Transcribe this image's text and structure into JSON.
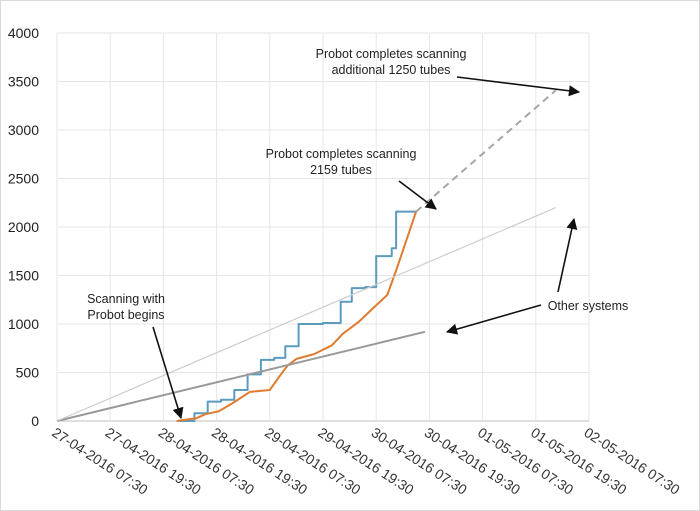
{
  "chart_data": {
    "type": "line",
    "title": "",
    "xlabel": "",
    "ylabel": "",
    "grid": true,
    "legend": "none",
    "ylim": [
      0,
      4000
    ],
    "yticks": [
      0,
      500,
      1000,
      1500,
      2000,
      2500,
      3000,
      3500,
      4000
    ],
    "xlim": [
      "27-04-2016 07:30",
      "02-05-2016 07:30"
    ],
    "xticks": [
      "27-04-2016 07:30",
      "27-04-2016 19:30",
      "28-04-2016 07:30",
      "28-04-2016 19:30",
      "29-04-2016 07:30",
      "29-04-2016 19:30",
      "30-04-2016 07:30",
      "30-04-2016 19:30",
      "01-05-2016 07:30",
      "01-05-2016 19:30",
      "02-05-2016 07:30"
    ],
    "series": [
      {
        "color": "#5b9bc0",
        "style": "step",
        "points": [
          [
            "28-04-2016 10:30",
            0
          ],
          [
            "28-04-2016 14:30",
            80
          ],
          [
            "28-04-2016 17:30",
            200
          ],
          [
            "28-04-2016 20:30",
            220
          ],
          [
            "28-04-2016 23:30",
            320
          ],
          [
            "29-04-2016 02:30",
            480
          ],
          [
            "29-04-2016 05:30",
            630
          ],
          [
            "29-04-2016 08:30",
            650
          ],
          [
            "29-04-2016 11:00",
            770
          ],
          [
            "29-04-2016 14:00",
            1000
          ],
          [
            "29-04-2016 19:30",
            1010
          ],
          [
            "29-04-2016 23:30",
            1230
          ],
          [
            "30-04-2016 02:00",
            1370
          ],
          [
            "30-04-2016 05:00",
            1380
          ],
          [
            "30-04-2016 07:30",
            1700
          ],
          [
            "30-04-2016 11:00",
            1780
          ],
          [
            "30-04-2016 12:00",
            2159
          ],
          [
            "30-04-2016 16:30",
            2159
          ]
        ]
      },
      {
        "color": "#e07b2f",
        "style": "line",
        "points": [
          [
            "28-04-2016 10:30",
            0
          ],
          [
            "28-04-2016 15:00",
            30
          ],
          [
            "28-04-2016 17:00",
            70
          ],
          [
            "28-04-2016 20:00",
            100
          ],
          [
            "28-04-2016 23:00",
            180
          ],
          [
            "29-04-2016 03:00",
            300
          ],
          [
            "29-04-2016 07:30",
            320
          ],
          [
            "29-04-2016 09:30",
            450
          ],
          [
            "29-04-2016 11:30",
            570
          ],
          [
            "29-04-2016 13:30",
            640
          ],
          [
            "29-04-2016 17:30",
            690
          ],
          [
            "29-04-2016 21:30",
            780
          ],
          [
            "30-04-2016 00:00",
            900
          ],
          [
            "30-04-2016 03:30",
            1020
          ],
          [
            "30-04-2016 06:30",
            1150
          ],
          [
            "30-04-2016 10:00",
            1300
          ],
          [
            "30-04-2016 12:00",
            1550
          ],
          [
            "30-04-2016 16:30",
            2159
          ]
        ]
      },
      {
        "color": "#a6a6a6",
        "style": "dashed",
        "points": [
          [
            "30-04-2016 16:30",
            2159
          ],
          [
            "02-05-2016 00:00",
            3409
          ]
        ]
      },
      {
        "color": "#999999",
        "style": "line",
        "points": [
          [
            "27-04-2016 07:30",
            0
          ],
          [
            "30-04-2016 18:30",
            920
          ]
        ]
      },
      {
        "color": "#cccccc",
        "style": "line",
        "points": [
          [
            "27-04-2016 07:30",
            0
          ],
          [
            "02-05-2016 00:00",
            2200
          ]
        ]
      }
    ],
    "annotations": [
      {
        "lines": [
          "Probot completes scanning",
          "additional 1250 tubes"
        ]
      },
      {
        "lines": [
          "Probot completes scanning",
          "2159 tubes"
        ]
      },
      {
        "lines": [
          "Scanning with",
          "Probot begins"
        ]
      },
      {
        "lines": [
          "Other systems"
        ]
      }
    ]
  }
}
